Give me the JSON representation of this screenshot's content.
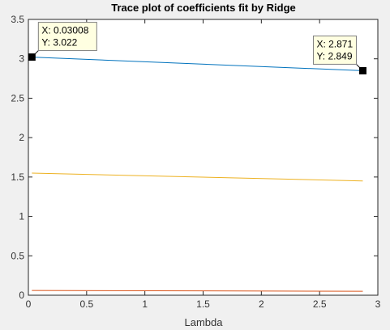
{
  "chart_data": {
    "type": "line",
    "title": "Trace plot of coefficients fit by Ridge",
    "xlabel": "Lambda",
    "ylabel": "",
    "xlim": [
      0,
      3
    ],
    "ylim": [
      0,
      3.5
    ],
    "xticks": [
      "0",
      "0.5",
      "1",
      "1.5",
      "2",
      "2.5",
      "3"
    ],
    "yticks": [
      "0",
      "0.5",
      "1",
      "1.5",
      "2",
      "2.5",
      "3",
      "3.5"
    ],
    "grid": false,
    "series": [
      {
        "color": "#0072BD",
        "x": [
          0.03008,
          2.871
        ],
        "y": [
          3.022,
          2.849
        ]
      },
      {
        "color": "#EDB120",
        "x": [
          0.03008,
          2.871
        ],
        "y": [
          1.55,
          1.45
        ]
      },
      {
        "color": "#D95319",
        "x": [
          0.03008,
          2.871
        ],
        "y": [
          0.06,
          0.05
        ]
      }
    ],
    "datatips": [
      {
        "x": 0.03008,
        "y": 3.022,
        "x_text": "X: 0.03008",
        "y_text": "Y: 3.022",
        "placement": "top-right"
      },
      {
        "x": 2.871,
        "y": 2.849,
        "x_text": "X: 2.871",
        "y_text": "Y: 2.849",
        "placement": "top-left"
      }
    ]
  }
}
